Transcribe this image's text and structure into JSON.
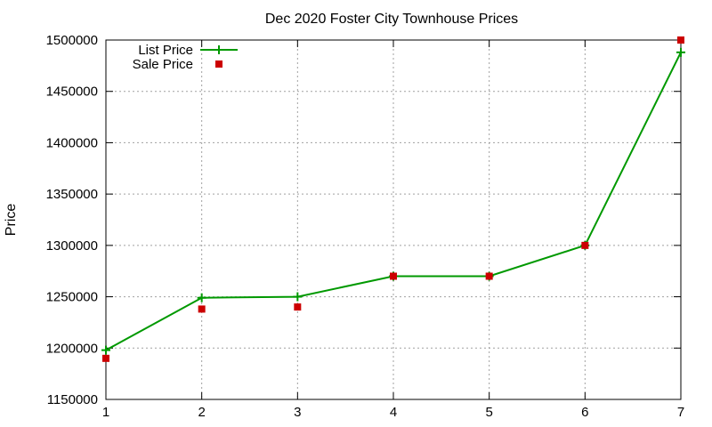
{
  "chart_data": {
    "type": "line",
    "title": "Dec 2020 Foster City Townhouse Prices",
    "xlabel": "",
    "ylabel": "Price",
    "x": [
      1,
      2,
      3,
      4,
      5,
      6,
      7
    ],
    "xlim": [
      1,
      7
    ],
    "ylim": [
      1150000,
      1500000
    ],
    "xticks": [
      "1",
      "2",
      "3",
      "4",
      "5",
      "6",
      "7"
    ],
    "yticks": [
      "1150000",
      "1200000",
      "1250000",
      "1300000",
      "1350000",
      "1400000",
      "1450000",
      "1500000"
    ],
    "grid": true,
    "legend_position": "top-left",
    "series": [
      {
        "name": "List Price",
        "style": "line-with-plus-markers",
        "color": "#009900",
        "values": [
          1198000,
          1249000,
          1250000,
          1270000,
          1270000,
          1300000,
          1488000
        ]
      },
      {
        "name": "Sale Price",
        "style": "square-markers",
        "color": "#cc0000",
        "values": [
          1190000,
          1238000,
          1240000,
          1270000,
          1270000,
          1300000,
          1500000
        ]
      }
    ]
  }
}
